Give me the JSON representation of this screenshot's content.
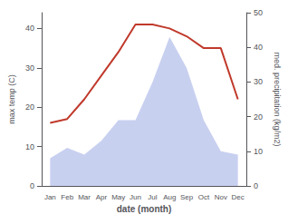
{
  "chart_data": {
    "type": "line",
    "xlabel": "date (month)",
    "ylabel": "max temp (C)",
    "y2label": "med. precipitation (kg/m2)",
    "categories": [
      "Jan",
      "Feb",
      "Mar",
      "Apr",
      "May",
      "Jun",
      "Jul",
      "Aug",
      "Sep",
      "Oct",
      "Nov",
      "Dec"
    ],
    "series": [
      {
        "type": "area",
        "axis": "y2",
        "color": "#c8d0f0",
        "values": [
          8,
          11,
          9,
          13,
          19,
          19,
          30,
          43,
          34,
          19,
          10,
          9
        ]
      },
      {
        "type": "line",
        "color": "#c0392b",
        "values": [
          16,
          17,
          22,
          28,
          34,
          41,
          41,
          40,
          38,
          35,
          35,
          22
        ]
      }
    ],
    "ylim": [
      0,
      44
    ],
    "yticks": [
      0,
      10,
      20,
      30,
      40
    ],
    "y2lim": [
      0,
      50
    ],
    "y2ticks": [
      0,
      10,
      20,
      30,
      40,
      50
    ],
    "grid": false
  }
}
